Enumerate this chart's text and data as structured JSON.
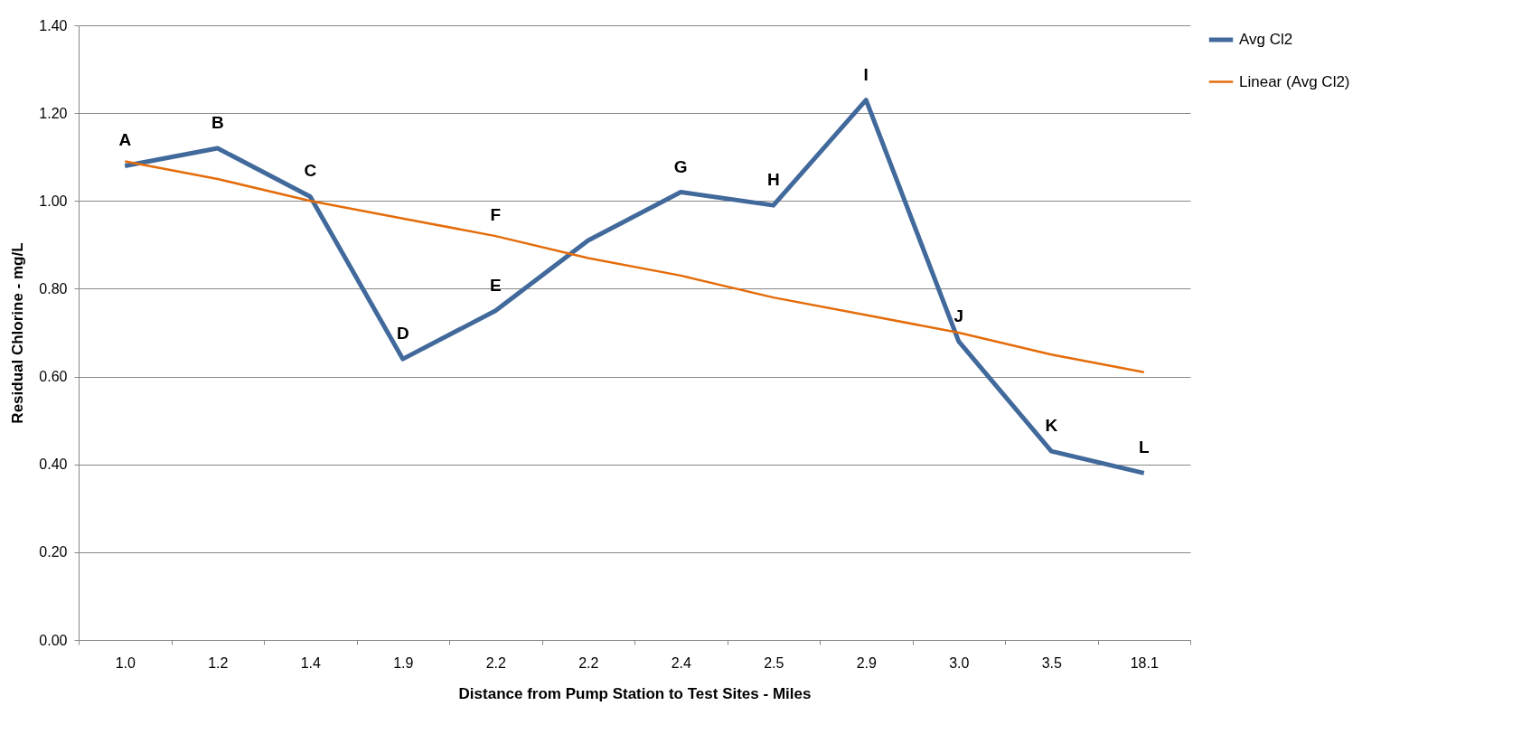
{
  "chart_data": {
    "type": "line",
    "xlabel": "Distance from Pump Station to Test Sites - Miles",
    "ylabel": "Residual Chlorine - mg/L",
    "categories": [
      "1.0",
      "1.2",
      "1.4",
      "1.9",
      "2.2",
      "2.2",
      "2.4",
      "2.5",
      "2.9",
      "3.0",
      "3.5",
      "18.1"
    ],
    "series": [
      {
        "name": "Avg Cl2",
        "color": "#41699b",
        "values": [
          1.08,
          1.12,
          1.01,
          0.64,
          0.75,
          0.91,
          1.02,
          0.99,
          1.23,
          0.68,
          0.43,
          0.38
        ]
      },
      {
        "name": "Linear (Avg Cl2)",
        "color": "#e46c0a",
        "values": [
          1.09,
          1.05,
          1.0,
          0.96,
          0.92,
          0.87,
          0.83,
          0.78,
          0.74,
          0.7,
          0.65,
          0.61
        ]
      }
    ],
    "ylim": [
      0,
      1.4
    ],
    "yticks": [
      {
        "value": 0,
        "label": "0.00"
      },
      {
        "value": 0.2,
        "label": "0.20"
      },
      {
        "value": 0.4,
        "label": "0.40"
      },
      {
        "value": 0.6,
        "label": "0.60"
      },
      {
        "value": 0.8,
        "label": "0.80"
      },
      {
        "value": 1.0,
        "label": "1.00"
      },
      {
        "value": 1.2,
        "label": "1.20"
      },
      {
        "value": 1.4,
        "label": "1.40"
      }
    ],
    "grid": "y",
    "legend": "right",
    "marker": "none",
    "line_style": "solid",
    "annotations": [
      {
        "text": "A",
        "x": "1.0",
        "y": 1.08
      },
      {
        "text": "B",
        "x": "1.2",
        "y": 1.12
      },
      {
        "text": "C",
        "x": "1.4",
        "y": 1.01
      },
      {
        "text": "D",
        "x": "1.9",
        "y": 0.64
      },
      {
        "text": "E",
        "x": "2.2",
        "y": 0.75
      },
      {
        "text": "F",
        "x": "2.2",
        "y": 0.91
      },
      {
        "text": "G",
        "x": "2.4",
        "y": 1.02
      },
      {
        "text": "H",
        "x": "2.5",
        "y": 0.99
      },
      {
        "text": "I",
        "x": "2.9",
        "y": 1.23
      },
      {
        "text": "J",
        "x": "3.0",
        "y": 0.68
      },
      {
        "text": "K",
        "x": "3.5",
        "y": 0.43
      },
      {
        "text": "L",
        "x": "18.1",
        "y": 0.38
      }
    ]
  }
}
